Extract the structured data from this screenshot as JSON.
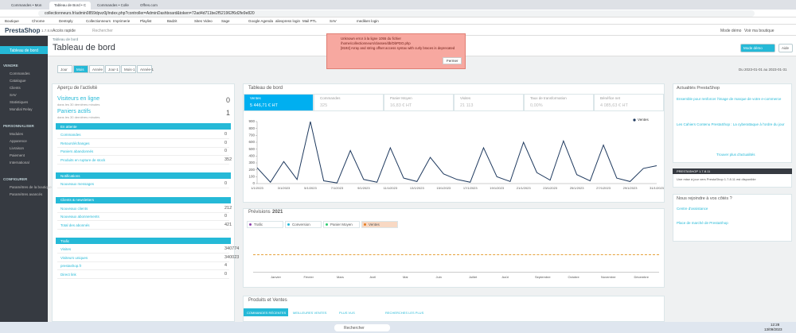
{
  "browser": {
    "tabs": [
      "Commandes • Mon Lecteur U...",
      "Tableau de Bord • Collectionn...",
      "Commandes • Collectionneurs",
      "Offres.com"
    ],
    "url": "collectionneurs.fr/admin0859dpvz0j/index.php?controller=AdminDashboard&token=72ad4d711be2f521962f6d2fe9e820"
  },
  "bookmarks": [
    "Boutique",
    "Chrome",
    "Dentsply",
    "Collectionneurs",
    "Imprimerie",
    "Playlist",
    "Badzit",
    "Sites Video",
    "Sage",
    "Google Agenda",
    "aliexpress login",
    "Mail PTL",
    "SAV",
    "mediken login"
  ],
  "header": {
    "logo": "PrestaShop",
    "version": "1.7.8.8",
    "quick_access": "Accès rapide",
    "search": "Rechercher",
    "demo": "Mode démo",
    "shop": "Voir ma boutique"
  },
  "sidebar": {
    "active": "Tableau de bord",
    "sections": [
      {
        "title": "VENDRE",
        "items": [
          "Commandes",
          "Catalogue",
          "Clients",
          "SAV",
          "Statistiques",
          "Mondial Relay"
        ]
      },
      {
        "title": "PERSONNALISER",
        "items": [
          "Modules",
          "Apparence",
          "Livraison",
          "Paiement",
          "International"
        ]
      },
      {
        "title": "CONFIGURER",
        "items": [
          "Paramètres de la boutique",
          "Paramètres avancés"
        ]
      }
    ]
  },
  "page": {
    "breadcrumb": "Tableau de bord",
    "title": "Tableau de bord",
    "buttons": [
      "Mode démo",
      "Aide"
    ],
    "periods": [
      "Jour",
      "Mois",
      "Année",
      "Jour-1",
      "Mois-1",
      "Année-1"
    ],
    "date_range": "Du 2023-01-01 au 2023-01-31"
  },
  "activity": {
    "title": "Aperçu de l'activité",
    "online": {
      "label": "Visiteurs en ligne",
      "value": 0,
      "note": "dans les 30 dernières minutes"
    },
    "carts": {
      "label": "Paniers actifs",
      "value": 1,
      "note": "dans les 30 dernières minutes"
    },
    "groups": [
      {
        "title": "En attente",
        "rows": [
          [
            "Commandes",
            0
          ],
          [
            "Retours/échanges",
            0
          ],
          [
            "Paniers abandonnés",
            0
          ],
          [
            "Produits en rupture de stock",
            352
          ]
        ]
      },
      {
        "title": "Notifications",
        "rows": [
          [
            "Nouveaux messages",
            0
          ]
        ]
      },
      {
        "title": "Clients & newsletters",
        "rows": [
          [
            "Nouveaux clients",
            212
          ],
          [
            "Nouveaux abonnements",
            0
          ],
          [
            "Total des abonnés",
            421
          ]
        ]
      },
      {
        "title": "Trafic",
        "rows": [
          [
            "Visites",
            340774
          ],
          [
            "Visiteurs uniques",
            340023
          ],
          [
            "prestashop.fr",
            4
          ],
          [
            "Direct link",
            0
          ]
        ]
      }
    ]
  },
  "dashboard": {
    "title": "Tableau de bord",
    "kpis": [
      {
        "label": "Ventes",
        "value": "5 446,71 € HT"
      },
      {
        "label": "Commandes",
        "value": "325"
      },
      {
        "label": "Panier Moyen",
        "value": "16,83 € HT"
      },
      {
        "label": "Visites",
        "value": "21 113"
      },
      {
        "label": "Taux de transformation",
        "value": "0,00%"
      },
      {
        "label": "Bénéfice net",
        "value": "4 085,63 € HT"
      }
    ]
  },
  "chart_data": {
    "type": "line",
    "categories": [
      "1/1/2023",
      null,
      "3/1/2023",
      null,
      "5/1/2023",
      null,
      "7/1/2023",
      null,
      "9/1/2023",
      null,
      "11/1/2023",
      null,
      "13/1/2023",
      null,
      "15/1/2023",
      null,
      "17/1/2023",
      null,
      "19/1/2023",
      null,
      "21/1/2023",
      null,
      "23/1/2023",
      null,
      "25/1/2023",
      null,
      "27/1/2023",
      null,
      "29/1/2023",
      null,
      "31/1/2023"
    ],
    "series": [
      {
        "name": "Ventes",
        "color": "#1f3a5f",
        "values": [
          230,
          20,
          320,
          60,
          900,
          40,
          10,
          480,
          60,
          20,
          520,
          80,
          30,
          380,
          140,
          60,
          20,
          520,
          100,
          30,
          600,
          160,
          50,
          620,
          130,
          40,
          560,
          80,
          30,
          220,
          260
        ]
      }
    ],
    "ylim": [
      0,
      900
    ],
    "yticks": [
      0,
      100,
      200,
      300,
      400,
      500,
      600,
      700,
      800,
      900
    ],
    "legend": "top-right"
  },
  "forecast": {
    "title": "Prévisions",
    "year": "2021",
    "legend": [
      "Trafic",
      "Conversion",
      "Panier Moyen",
      "Ventes"
    ],
    "months": [
      "Janvier",
      "Février",
      "Mars",
      "Avril",
      "Mai",
      "Juin",
      "Juillet",
      "Août",
      "Septembre",
      "Octobre",
      "Novembre",
      "Décembre"
    ]
  },
  "products": {
    "title": "Produits et Ventes",
    "tabs": [
      "COMMANDES RÉCENTES",
      "MEILLEURES VENTES",
      "PLUS VUS",
      "RECHERCHES LES PLUS"
    ]
  },
  "news": {
    "title": "Actualités PrestaShop",
    "items": [
      "Ensemble pour renforcer l'image de marque de votre e-commerce",
      "Les Cahiers Contenu PrestaShop : La cyberattaque à l'ordre du jour"
    ],
    "more": "Trouver plus d'actualités",
    "update_title": "PRESTASHOP 1.7.8.11",
    "update": "Une mise à jour vers PrestaShop 1.7.8.11 est disponible",
    "help_title": "Nous rejoindre à vos côtés ?",
    "help_items": [
      "Centre d'assistance",
      "Place de marché de PrestaShop"
    ]
  },
  "error": {
    "lines": [
      "Unknown error à la ligne 1055 du fichier",
      "/home/collectionneurs/classes/db/DbPDO.php",
      "[8192] Array and string offset access syntax with curly braces is deprecated"
    ],
    "button": "Fermer"
  },
  "taskbar": {
    "search": "Rechercher",
    "time": "12:28",
    "date": "13/09/2023"
  }
}
